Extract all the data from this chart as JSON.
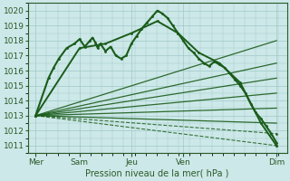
{
  "xlabel": "Pression niveau de la mer( hPa )",
  "ylim": [
    1010.5,
    1020.5
  ],
  "yticks": [
    1011,
    1012,
    1013,
    1014,
    1015,
    1016,
    1017,
    1018,
    1019,
    1020
  ],
  "xlim": [
    0,
    100
  ],
  "xtick_positions": [
    3,
    20,
    40,
    60,
    96
  ],
  "xtick_labels": [
    "Mer",
    "Sam",
    "Jeu",
    "Ven",
    "Dim"
  ],
  "bg_color": "#cde8e8",
  "grid_color": "#a0c8c8",
  "line_color": "#1a5c1a",
  "origin_x": 3,
  "origin_y": 1013.0,
  "lines": [
    {
      "x": [
        3,
        8,
        10,
        12,
        15,
        18,
        20,
        22,
        24,
        25,
        26,
        27,
        28,
        30,
        32,
        34,
        36,
        38,
        40,
        42,
        44,
        46,
        48,
        50,
        52,
        54,
        56,
        58,
        60,
        62,
        64,
        66,
        68,
        70,
        72,
        74,
        76,
        78,
        80,
        82,
        84,
        86,
        88,
        90,
        92,
        94,
        96
      ],
      "y": [
        1013.0,
        1015.5,
        1016.2,
        1016.8,
        1017.5,
        1017.8,
        1018.1,
        1017.6,
        1018.0,
        1018.2,
        1017.9,
        1017.5,
        1017.8,
        1017.3,
        1017.6,
        1017.0,
        1016.8,
        1017.0,
        1017.8,
        1018.3,
        1018.8,
        1019.2,
        1019.6,
        1020.0,
        1019.8,
        1019.5,
        1019.0,
        1018.5,
        1018.0,
        1017.5,
        1017.2,
        1016.8,
        1016.5,
        1016.3,
        1016.6,
        1016.4,
        1016.2,
        1015.8,
        1015.4,
        1015.0,
        1014.5,
        1013.8,
        1013.2,
        1012.8,
        1012.3,
        1011.8,
        1011.2
      ],
      "style": "solid",
      "marker": true,
      "lw": 1.5,
      "alpha": 1.0
    },
    {
      "x": [
        3,
        20,
        30,
        40,
        50,
        58,
        66,
        74,
        82,
        90,
        96
      ],
      "y": [
        1013.0,
        1017.5,
        1017.8,
        1018.5,
        1019.3,
        1018.5,
        1017.2,
        1016.5,
        1015.2,
        1012.5,
        1011.0
      ],
      "style": "solid",
      "marker": true,
      "lw": 1.4,
      "alpha": 1.0
    },
    {
      "x": [
        3,
        96
      ],
      "y": [
        1013.0,
        1018.0
      ],
      "style": "solid",
      "marker": false,
      "lw": 0.9,
      "alpha": 0.9
    },
    {
      "x": [
        3,
        96
      ],
      "y": [
        1013.0,
        1016.5
      ],
      "style": "solid",
      "marker": false,
      "lw": 0.9,
      "alpha": 0.9
    },
    {
      "x": [
        3,
        96
      ],
      "y": [
        1013.0,
        1015.5
      ],
      "style": "solid",
      "marker": false,
      "lw": 0.9,
      "alpha": 0.9
    },
    {
      "x": [
        3,
        96
      ],
      "y": [
        1013.0,
        1014.5
      ],
      "style": "solid",
      "marker": false,
      "lw": 0.9,
      "alpha": 0.9
    },
    {
      "x": [
        3,
        96
      ],
      "y": [
        1013.0,
        1013.5
      ],
      "style": "solid",
      "marker": false,
      "lw": 0.9,
      "alpha": 0.9
    },
    {
      "x": [
        3,
        96
      ],
      "y": [
        1013.0,
        1012.5
      ],
      "style": "solid",
      "marker": false,
      "lw": 0.9,
      "alpha": 0.9
    },
    {
      "x": [
        3,
        96
      ],
      "y": [
        1013.0,
        1011.8
      ],
      "style": "dashed",
      "marker": true,
      "lw": 0.8,
      "alpha": 0.85
    },
    {
      "x": [
        3,
        96
      ],
      "y": [
        1013.0,
        1011.0
      ],
      "style": "dashed",
      "marker": true,
      "lw": 0.8,
      "alpha": 0.85
    }
  ]
}
